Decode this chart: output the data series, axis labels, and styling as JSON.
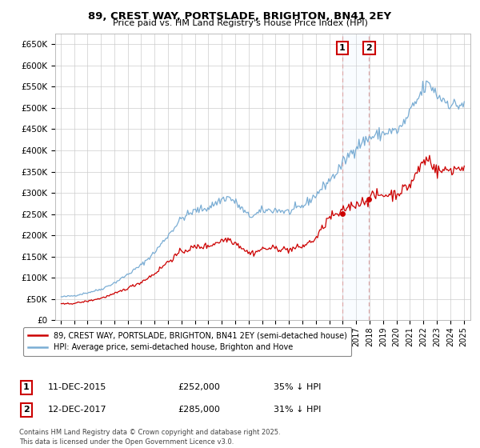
{
  "title": "89, CREST WAY, PORTSLADE, BRIGHTON, BN41 2EY",
  "subtitle": "Price paid vs. HM Land Registry's House Price Index (HPI)",
  "legend_line1": "89, CREST WAY, PORTSLADE, BRIGHTON, BN41 2EY (semi-detached house)",
  "legend_line2": "HPI: Average price, semi-detached house, Brighton and Hove",
  "annotation1_date": "11-DEC-2015",
  "annotation1_price": "£252,000",
  "annotation1_hpi": "35% ↓ HPI",
  "annotation2_date": "12-DEC-2017",
  "annotation2_price": "£285,000",
  "annotation2_hpi": "31% ↓ HPI",
  "footnote": "Contains HM Land Registry data © Crown copyright and database right 2025.\nThis data is licensed under the Open Government Licence v3.0.",
  "sale1_year": 2015.958,
  "sale1_price": 252000,
  "sale2_year": 2017.958,
  "sale2_price": 285000,
  "hpi_color": "#7aadd4",
  "sold_color": "#cc0000",
  "annotation_box_color": "#cc0000",
  "dashed_line_color": "#ddaaaa",
  "shade_color": "#ddeeff",
  "ylim_max": 675000,
  "ytick_step": 50000,
  "background_color": "#ffffff",
  "grid_color": "#cccccc"
}
